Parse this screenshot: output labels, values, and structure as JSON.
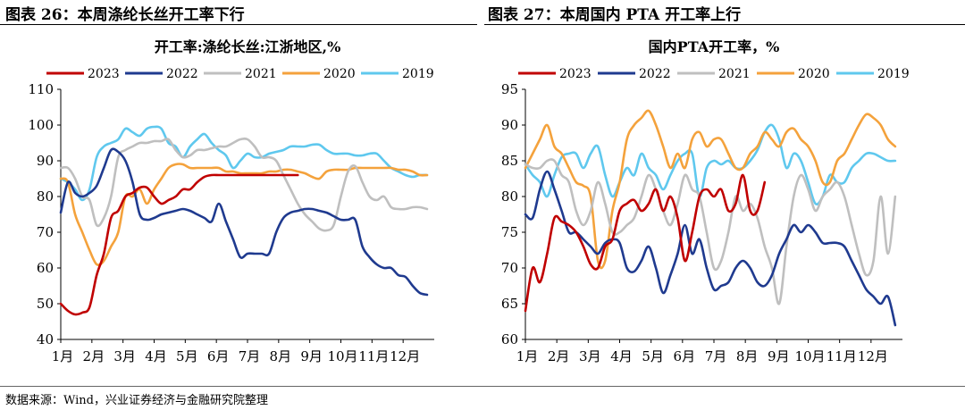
{
  "left_header": "图表 26：本周涤纶长丝开工率下行",
  "right_header": "图表 27：本周国内 PTA 开工率上行",
  "source": "数据来源：Wind，兴业证券经济与金融研究院整理",
  "colors": {
    "2023": "#C00000",
    "2022": "#1F3A8F",
    "2021": "#BFBFBF",
    "2020": "#F4A23C",
    "2019": "#5FC8EE"
  },
  "chart_data": [
    {
      "type": "line",
      "title": "开工率:涤纶长丝:江浙地区,%",
      "xlabel": "",
      "ylabel": "",
      "ylim": [
        40,
        110
      ],
      "yticks": [
        40,
        50,
        60,
        70,
        80,
        90,
        100,
        110
      ],
      "xlim": [
        0,
        52
      ],
      "month_labels": [
        "1月",
        "2月",
        "3月",
        "4月",
        "5月",
        "6月",
        "7月",
        "8月",
        "9月",
        "10月",
        "11月",
        "12月"
      ],
      "legend": [
        "2023",
        "2022",
        "2021",
        "2020",
        "2019"
      ],
      "legend_position": "top",
      "grid": false,
      "series": [
        {
          "name": "2023",
          "x": [
            0,
            1,
            2,
            3,
            4,
            5,
            6,
            7,
            8,
            9,
            10,
            11,
            12,
            13,
            14,
            15,
            16,
            17,
            18,
            19,
            20,
            21,
            22,
            23,
            24,
            25,
            26,
            27,
            28,
            29,
            30,
            31,
            32,
            33
          ],
          "values": [
            50,
            48,
            47,
            47.5,
            49,
            58,
            64,
            74,
            76,
            80,
            81,
            82.5,
            82.5,
            80,
            78,
            79,
            80,
            82,
            82,
            84,
            85.5,
            86,
            86,
            86,
            86,
            86,
            86,
            86,
            86,
            86,
            86,
            86,
            86,
            86
          ]
        },
        {
          "name": "2022",
          "x": [
            0,
            1,
            2,
            3,
            4,
            5,
            6,
            7,
            8,
            9,
            10,
            11,
            12,
            13,
            14,
            15,
            16,
            17,
            18,
            19,
            20,
            21,
            22,
            23,
            24,
            25,
            26,
            27,
            28,
            29,
            30,
            31,
            32,
            33,
            34,
            35,
            36,
            37,
            38,
            39,
            40,
            41,
            42,
            43,
            44,
            45,
            46,
            47,
            48,
            49,
            50,
            51
          ],
          "values": [
            75.5,
            84,
            81,
            80,
            81,
            83,
            88,
            93,
            92.5,
            90,
            84,
            75,
            73.5,
            74,
            75,
            75.5,
            76,
            76.5,
            76,
            75,
            74,
            73,
            78,
            73,
            68,
            63,
            64,
            64,
            64,
            64,
            70,
            74,
            75.5,
            76,
            76.5,
            76.5,
            76,
            75.5,
            74.5,
            73.5,
            73.5,
            73.5,
            66,
            63,
            61,
            60,
            60,
            58,
            57.5,
            55,
            53,
            52.5
          ]
        },
        {
          "name": "2021",
          "x": [
            0,
            1,
            2,
            3,
            4,
            5,
            6,
            7,
            8,
            9,
            10,
            11,
            12,
            13,
            14,
            15,
            16,
            17,
            18,
            19,
            20,
            21,
            22,
            23,
            24,
            25,
            26,
            27,
            28,
            29,
            30,
            31,
            32,
            33,
            34,
            35,
            36,
            37,
            38,
            39,
            40,
            41,
            42,
            43,
            44,
            45,
            46,
            47,
            48,
            49,
            50,
            51
          ],
          "values": [
            88,
            88,
            85,
            80,
            79,
            72,
            74,
            80,
            91,
            93,
            94,
            95,
            95,
            95.5,
            95.5,
            96,
            93,
            91,
            91.5,
            93,
            93,
            93.5,
            94,
            94,
            95,
            96,
            96,
            94,
            91,
            91,
            90,
            86,
            82,
            78,
            75,
            73,
            71,
            70.5,
            72,
            80,
            87,
            88.5,
            84,
            80,
            79,
            80,
            77,
            76.5,
            76.5,
            77,
            77,
            76.5
          ]
        },
        {
          "name": "2020",
          "x": [
            0,
            1,
            2,
            3,
            4,
            5,
            6,
            7,
            8,
            9,
            10,
            11,
            12,
            13,
            14,
            15,
            16,
            17,
            18,
            19,
            20,
            21,
            22,
            23,
            24,
            25,
            26,
            27,
            28,
            29,
            30,
            31,
            32,
            33,
            34,
            35,
            36,
            37,
            38,
            39,
            40,
            41,
            42,
            43,
            44,
            45,
            46,
            47,
            48,
            49,
            50,
            51
          ],
          "values": [
            85,
            84,
            75,
            70,
            65,
            61,
            62,
            66,
            70,
            80,
            80,
            82,
            78,
            82,
            85,
            88,
            89,
            89,
            88,
            88,
            88,
            88,
            88,
            87,
            87,
            86.5,
            86.5,
            86.5,
            86.5,
            87,
            87,
            87.5,
            87.5,
            87,
            86.5,
            85.5,
            85,
            87,
            87.5,
            87.5,
            87.5,
            88,
            88,
            88,
            88,
            88,
            88,
            87.5,
            87.5,
            87,
            86,
            86
          ]
        },
        {
          "name": "2019",
          "x": [
            0,
            1,
            2,
            3,
            4,
            5,
            6,
            7,
            8,
            9,
            10,
            11,
            12,
            13,
            14,
            15,
            16,
            17,
            18,
            19,
            20,
            21,
            22,
            23,
            24,
            25,
            26,
            27,
            28,
            29,
            30,
            31,
            32,
            33,
            34,
            35,
            36,
            37,
            38,
            39,
            40,
            41,
            42,
            43,
            44,
            45,
            46,
            47,
            48,
            49,
            50,
            51
          ],
          "values": [
            85,
            84,
            82,
            79,
            82,
            91,
            94,
            95,
            96,
            99,
            98,
            97,
            99,
            99.5,
            99,
            95,
            94,
            91,
            94,
            96,
            97.5,
            95,
            93,
            91.5,
            88,
            90,
            92,
            91,
            91,
            92,
            92.5,
            93,
            94,
            94,
            94,
            94.5,
            94.5,
            93,
            92,
            92,
            92,
            91.5,
            91.5,
            92,
            92,
            90,
            88,
            87,
            86,
            85.5,
            86,
            86
          ]
        }
      ]
    },
    {
      "type": "line",
      "title": "国内PTA开工率，%",
      "xlabel": "",
      "ylabel": "",
      "ylim": [
        60,
        95
      ],
      "yticks": [
        60,
        65,
        70,
        75,
        80,
        85,
        90,
        95
      ],
      "xlim": [
        0,
        52
      ],
      "month_labels": [
        "1月",
        "2月",
        "3月",
        "4月",
        "5月",
        "6月",
        "7月",
        "8月",
        "9月",
        "10月",
        "11月",
        "12月"
      ],
      "legend": [
        "2023",
        "2022",
        "2021",
        "2020",
        "2019"
      ],
      "legend_position": "top",
      "grid": false,
      "series": [
        {
          "name": "2023",
          "x": [
            0,
            1,
            2,
            3,
            4,
            5,
            6,
            7,
            8,
            9,
            10,
            11,
            12,
            13,
            14,
            15,
            16,
            17,
            18,
            19,
            20,
            21,
            22,
            23,
            24,
            25,
            26,
            27,
            28,
            29,
            30,
            31,
            32,
            33
          ],
          "values": [
            64,
            70,
            68,
            72,
            77,
            76.5,
            76,
            75,
            73,
            70.5,
            70,
            73,
            74,
            78,
            79,
            79.5,
            78,
            79,
            81,
            78,
            80,
            77,
            71,
            75,
            80,
            81,
            80,
            81,
            78,
            79,
            83,
            78,
            78,
            82
          ]
        },
        {
          "name": "2022",
          "x": [
            0,
            1,
            2,
            3,
            4,
            5,
            6,
            7,
            8,
            9,
            10,
            11,
            12,
            13,
            14,
            15,
            16,
            17,
            18,
            19,
            20,
            21,
            22,
            23,
            24,
            25,
            26,
            27,
            28,
            29,
            30,
            31,
            32,
            33,
            34,
            35,
            36,
            37,
            38,
            39,
            40,
            41,
            42,
            43,
            44,
            45,
            46,
            47,
            48,
            49,
            50,
            51
          ],
          "values": [
            77.5,
            77,
            81,
            83.5,
            81,
            78,
            75,
            75,
            74,
            73,
            72,
            73.5,
            74,
            73.5,
            70,
            69.5,
            71,
            73,
            70,
            66.5,
            69,
            72,
            76,
            72,
            74,
            70,
            67,
            67.5,
            68,
            70,
            71,
            70,
            68,
            67.5,
            69,
            72,
            74,
            76,
            75,
            76,
            75,
            73.5,
            73.5,
            73.5,
            73,
            71,
            69,
            67,
            66,
            65,
            66,
            62
          ]
        },
        {
          "name": "2021",
          "x": [
            0,
            1,
            2,
            3,
            4,
            5,
            6,
            7,
            8,
            9,
            10,
            11,
            12,
            13,
            14,
            15,
            16,
            17,
            18,
            19,
            20,
            21,
            22,
            23,
            24,
            25,
            26,
            27,
            28,
            29,
            30,
            31,
            32,
            33,
            34,
            35,
            36,
            37,
            38,
            39,
            40,
            41,
            42,
            43,
            44,
            45,
            46,
            47,
            48,
            49,
            50,
            51
          ],
          "values": [
            84.5,
            84,
            84,
            85,
            85,
            83,
            82,
            78,
            76,
            78,
            82,
            79,
            75,
            75,
            76,
            77,
            80,
            83,
            81,
            78,
            76,
            79,
            83,
            81,
            80,
            75,
            70,
            71,
            75,
            80,
            78,
            79,
            77,
            73,
            70,
            65,
            73,
            80,
            83,
            81,
            78,
            80,
            81,
            82,
            80,
            76,
            72,
            69,
            71,
            80,
            72,
            80
          ]
        },
        {
          "name": "2020",
          "x": [
            0,
            1,
            2,
            3,
            4,
            5,
            6,
            7,
            8,
            9,
            10,
            11,
            12,
            13,
            14,
            15,
            16,
            17,
            18,
            19,
            20,
            21,
            22,
            23,
            24,
            25,
            26,
            27,
            28,
            29,
            30,
            31,
            32,
            33,
            34,
            35,
            36,
            37,
            38,
            39,
            40,
            41,
            42,
            43,
            44,
            45,
            46,
            47,
            48,
            49,
            50,
            51
          ],
          "values": [
            84,
            86,
            88,
            90,
            87,
            86,
            84,
            82,
            81.5,
            80,
            71,
            71,
            78,
            82,
            88,
            90,
            91,
            92,
            90,
            87,
            84,
            86,
            84,
            88,
            89,
            87,
            88,
            88,
            86,
            84,
            84,
            86,
            87,
            89,
            88,
            87,
            89,
            89.5,
            88,
            87,
            85,
            82,
            82,
            85,
            86,
            88,
            90,
            91.5,
            91,
            90,
            88,
            87
          ]
        },
        {
          "name": "2019",
          "x": [
            0,
            1,
            2,
            3,
            4,
            5,
            6,
            7,
            8,
            9,
            10,
            11,
            12,
            13,
            14,
            15,
            16,
            17,
            18,
            19,
            20,
            21,
            22,
            23,
            24,
            25,
            26,
            27,
            28,
            29,
            30,
            31,
            32,
            33,
            34,
            35,
            36,
            37,
            38,
            39,
            40,
            41,
            42,
            43,
            44,
            45,
            46,
            47,
            48,
            49,
            50,
            51
          ],
          "values": [
            84.5,
            83,
            82,
            80,
            83,
            85.5,
            86,
            86,
            84,
            86,
            87,
            83,
            80,
            82,
            84,
            83,
            86,
            84,
            83,
            81,
            83,
            85,
            86,
            86,
            80,
            84,
            85,
            84.5,
            85,
            84,
            84,
            85,
            86.5,
            89,
            90,
            88,
            84,
            86,
            85,
            82,
            79,
            80,
            83,
            82,
            82,
            84,
            85,
            86,
            86,
            85.5,
            85,
            85
          ]
        }
      ]
    }
  ]
}
